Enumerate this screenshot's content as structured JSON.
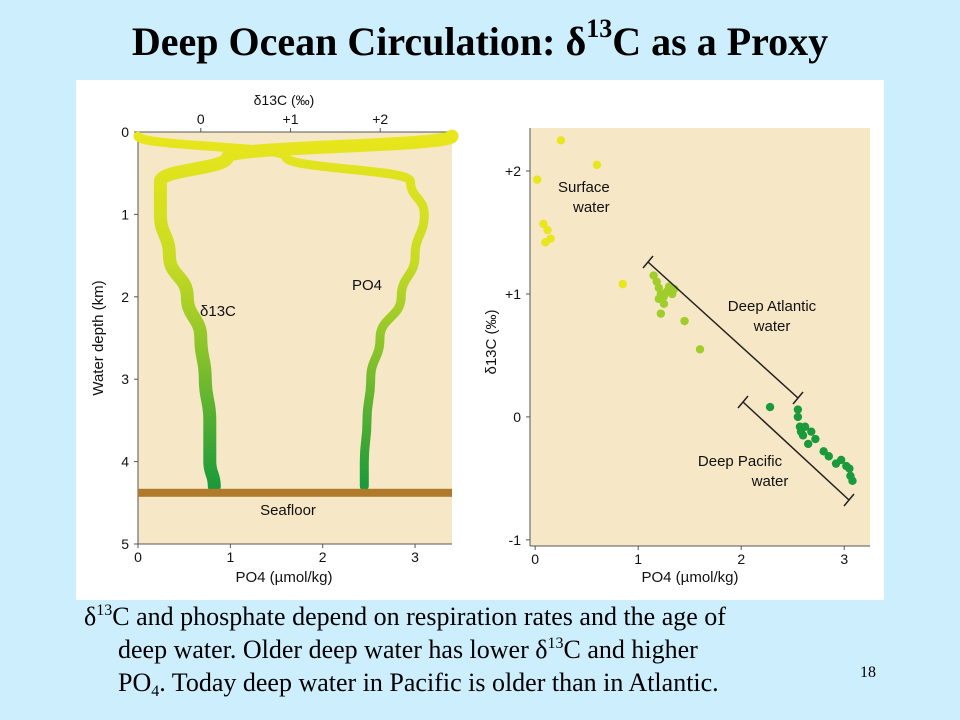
{
  "slide": {
    "title_pre": "Deep Ocean Circulation: δ",
    "title_sup": "13",
    "title_post": "C as a Proxy",
    "page_number": "18"
  },
  "caption": {
    "line1_a": "δ",
    "line1_sup": "13",
    "line1_b": "C and phosphate depend on respiration rates and the age of",
    "line2_a": "deep water. Older deep water has lower δ",
    "line2_sup": "13",
    "line2_b": "C and higher",
    "line3_a": "PO",
    "line3_sub": "4",
    "line3_b": ". Today deep water in Pacific is older than in Atlantic."
  },
  "colors": {
    "panel_bg": "#f6e7c6",
    "seafloor": "#b07a2c",
    "surface_yellow": "#e8e61c",
    "mid_green": "#9fcd2a",
    "deep_green": "#1a9a3a"
  },
  "chart_data": [
    {
      "type": "line",
      "top_axis_label": "δ13C (‰)",
      "top_ticks": [
        "0",
        "+1",
        "+2"
      ],
      "top_xlim": [
        -0.7,
        2.8
      ],
      "xlabel": "PO4 (µmol/kg)",
      "x_ticks": [
        "0",
        "1",
        "2",
        "3"
      ],
      "xlim": [
        0,
        3.4
      ],
      "ylabel": "Water depth (km)",
      "y_ticks": [
        "0",
        "1",
        "2",
        "3",
        "4",
        "5"
      ],
      "ylim": [
        5,
        0
      ],
      "seafloor_depth_km": 4.33,
      "seafloor_label": "Seafloor",
      "series": [
        {
          "name": "δ13C",
          "axis": "top",
          "depth_km": [
            0.05,
            0.3,
            0.6,
            1.0,
            1.5,
            2.0,
            2.5,
            3.0,
            3.5,
            4.0,
            4.3
          ],
          "values": [
            2.8,
            0.3,
            -0.45,
            -0.45,
            -0.35,
            -0.15,
            0.0,
            0.05,
            0.1,
            0.1,
            0.15
          ]
        },
        {
          "name": "PO4",
          "axis": "bottom",
          "depth_km": [
            0.05,
            0.3,
            0.6,
            1.0,
            1.5,
            2.0,
            2.5,
            3.0,
            3.5,
            4.0,
            4.3
          ],
          "values": [
            0.0,
            1.6,
            2.95,
            3.1,
            3.0,
            2.85,
            2.62,
            2.52,
            2.48,
            2.45,
            2.45
          ]
        }
      ]
    },
    {
      "type": "scatter",
      "xlabel": "PO4 (µmol/kg)",
      "ylabel": "δ13C (‰)",
      "x_ticks": [
        "0",
        "1",
        "2",
        "3"
      ],
      "y_ticks": [
        "+2",
        "+1",
        "0",
        "-1"
      ],
      "xlim": [
        -0.05,
        3.25
      ],
      "ylim": [
        -1.05,
        2.35
      ],
      "series": [
        {
          "name": "Surface water",
          "x": [
            0.02,
            0.25,
            0.6,
            0.08,
            0.12,
            0.15,
            0.1,
            0.85
          ],
          "y": [
            1.93,
            2.25,
            2.05,
            1.57,
            1.52,
            1.45,
            1.42,
            1.08
          ]
        },
        {
          "name": "Deep Atlantic water",
          "x": [
            1.15,
            1.18,
            1.2,
            1.22,
            1.25,
            1.28,
            1.3,
            1.33,
            1.2,
            1.25,
            1.22,
            1.35,
            1.45,
            1.6
          ],
          "y": [
            1.15,
            1.1,
            1.05,
            1.0,
            0.98,
            1.02,
            1.06,
            1.0,
            0.96,
            0.92,
            0.84,
            1.04,
            0.78,
            0.55
          ]
        },
        {
          "name": "Deep Pacific water",
          "x": [
            2.28,
            2.55,
            2.55,
            2.57,
            2.58,
            2.6,
            2.62,
            2.65,
            2.68,
            2.72,
            2.8,
            2.85,
            2.92,
            2.97,
            3.02,
            3.05,
            3.06,
            3.08
          ],
          "y": [
            0.08,
            0.06,
            0.0,
            -0.08,
            -0.12,
            -0.15,
            -0.08,
            -0.22,
            -0.12,
            -0.18,
            -0.28,
            -0.32,
            -0.38,
            -0.35,
            -0.4,
            -0.42,
            -0.48,
            -0.52
          ]
        }
      ],
      "annotations": [
        {
          "line1": "Surface",
          "line2": "water"
        },
        {
          "line1": "Deep Atlantic",
          "line2": "water"
        },
        {
          "line1": "Deep Pacific",
          "line2": "water"
        }
      ]
    }
  ]
}
